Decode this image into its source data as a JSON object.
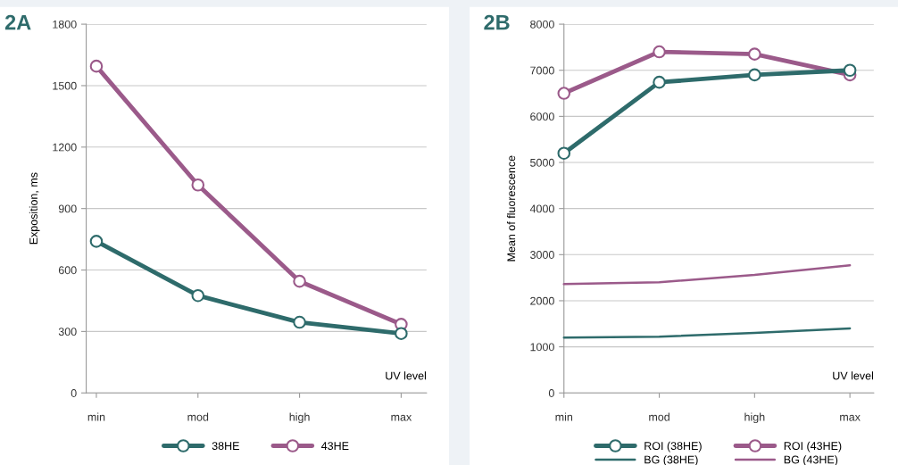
{
  "chart_data": [
    {
      "type": "line",
      "title": "2A",
      "xlabel": "UV level",
      "ylabel": "Exposition, ms",
      "categories": [
        "min",
        "mod",
        "high",
        "max"
      ],
      "ylim": [
        0,
        1800
      ],
      "yticks": [
        0,
        300,
        600,
        900,
        1200,
        1500,
        1800
      ],
      "grid": "y",
      "legend": "bottom",
      "marker": "circle",
      "line_style": "solid",
      "series": [
        {
          "name": "38HE",
          "color": "#2e6b6b",
          "values": [
            740,
            475,
            345,
            290
          ]
        },
        {
          "name": "43HE",
          "color": "#9b5a8a",
          "values": [
            1595,
            1015,
            545,
            335
          ]
        }
      ]
    },
    {
      "type": "line",
      "title": "2B",
      "xlabel": "UV level",
      "ylabel": "Mean of fluorescence",
      "categories": [
        "min",
        "mod",
        "high",
        "max"
      ],
      "ylim": [
        0,
        8000
      ],
      "yticks": [
        0,
        1000,
        2000,
        3000,
        4000,
        5000,
        6000,
        7000,
        8000
      ],
      "grid": "y",
      "legend": "bottom",
      "line_style": "solid",
      "series": [
        {
          "name": "ROI (38HE)",
          "color": "#2e6b6b",
          "marker": "circle",
          "values": [
            5200,
            6740,
            6900,
            7000
          ]
        },
        {
          "name": "BG (38HE)",
          "color": "#2e6b6b",
          "marker": "none",
          "values": [
            1200,
            1220,
            1300,
            1400
          ]
        },
        {
          "name": "ROI (43HE)",
          "color": "#9b5a8a",
          "marker": "circle",
          "values": [
            6500,
            7400,
            7350,
            6900
          ]
        },
        {
          "name": "BG (43HE)",
          "color": "#9b5a8a",
          "marker": "none",
          "values": [
            2360,
            2400,
            2560,
            2770
          ]
        }
      ]
    }
  ]
}
